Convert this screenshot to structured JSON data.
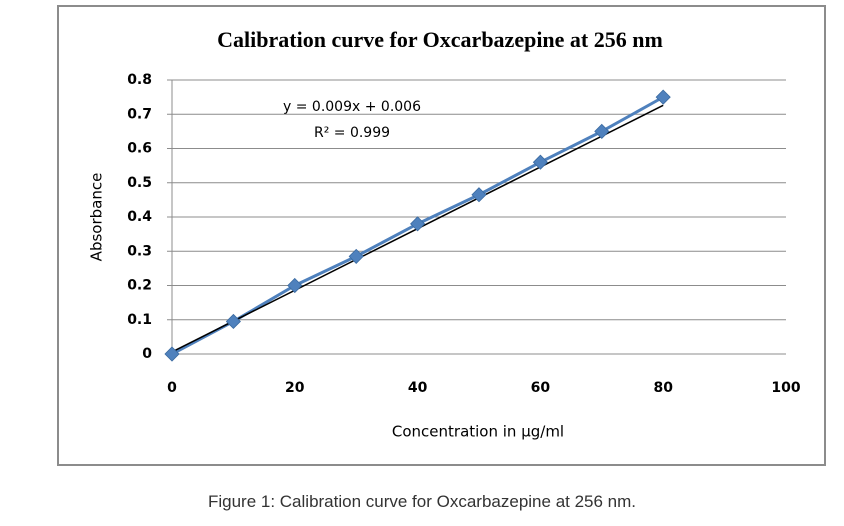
{
  "chart_data": {
    "type": "scatter",
    "title": "Calibration curve for Oxcarbazepine at 256 nm",
    "xlabel": "Concentration in µg/ml",
    "ylabel": "Absorbance",
    "x": [
      0,
      10,
      20,
      30,
      40,
      50,
      60,
      70,
      80
    ],
    "series": [
      {
        "color": "#4f81bd",
        "values": [
          0,
          0.095,
          0.2,
          0.285,
          0.38,
          0.465,
          0.56,
          0.65,
          0.75
        ]
      }
    ],
    "trendline": {
      "label": "y = 0.009x + 0.006",
      "slope": 0.009,
      "intercept": 0.006,
      "color": "#000000"
    },
    "r2_label": "R² = 0.999",
    "xlim": [
      0,
      100
    ],
    "xticks": [
      0,
      20,
      40,
      60,
      80,
      100
    ],
    "ylim": [
      0,
      0.8
    ],
    "yticks": [
      0,
      0.1,
      0.2,
      0.3,
      0.4,
      0.5,
      0.6,
      0.7,
      0.8
    ],
    "grid": true
  },
  "caption": "Figure 1: Calibration curve for Oxcarbazepine at 256 nm."
}
